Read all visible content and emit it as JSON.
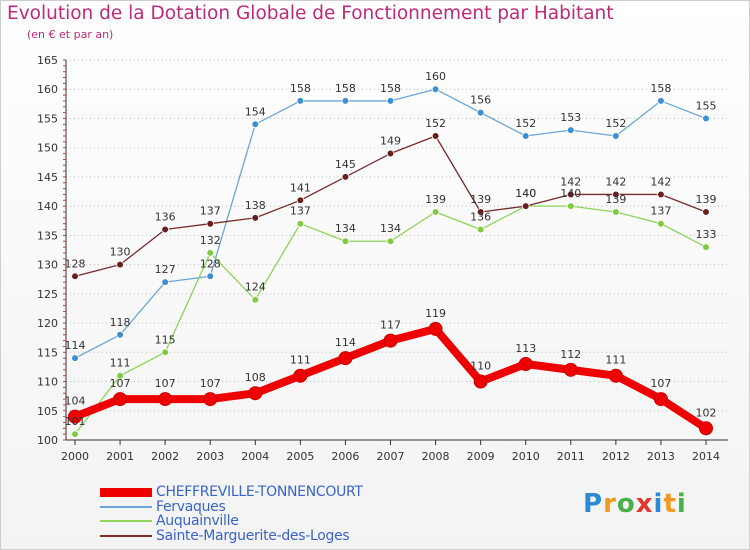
{
  "title": "Evolution de la Dotation Globale de Fonctionnement par Habitant",
  "subtitle": "(en € et par an)",
  "logo": {
    "letters": [
      "P",
      "r",
      "o",
      "x",
      "i",
      "t",
      "i"
    ],
    "colors": [
      "#2b8ad6",
      "#f39a1c",
      "#4ab04a",
      "#e23a2a",
      "#2b8ad6",
      "#f39a1c",
      "#4ab04a"
    ]
  },
  "chart_data": {
    "type": "line",
    "title": "Evolution de la Dotation Globale de Fonctionnement par Habitant",
    "subtitle": "(en € et par an)",
    "xlabel": "",
    "ylabel": "",
    "x": [
      "2000",
      "2001",
      "2002",
      "2003",
      "2004",
      "2005",
      "2006",
      "2007",
      "2008",
      "2009",
      "2010",
      "2011",
      "2012",
      "2013",
      "2014"
    ],
    "ylim": [
      100,
      165
    ],
    "yticks": [
      100,
      105,
      110,
      115,
      120,
      125,
      130,
      135,
      140,
      145,
      150,
      155,
      160,
      165
    ],
    "grid": "horizontal dotted",
    "legend_position": "bottom-left",
    "series": [
      {
        "name": "CHEFFREVILLE-TONNENCOURT",
        "color": "#ee0000",
        "values": [
          104,
          107,
          107,
          107,
          108,
          111,
          114,
          117,
          119,
          110,
          113,
          112,
          111,
          107,
          102
        ],
        "labels": [
          "104",
          "107",
          "107",
          "107",
          "108",
          "111",
          "114",
          "117",
          "119",
          "110",
          "113",
          "112",
          "111",
          "107",
          "102"
        ]
      },
      {
        "name": "Fervaques",
        "color": "#6ca6d8",
        "values": [
          114,
          118,
          127,
          128,
          154,
          158,
          158,
          158,
          160,
          156,
          152,
          153,
          152,
          158,
          155
        ],
        "labels": [
          "114",
          "118",
          "127",
          "128",
          "154",
          "158",
          "158",
          "158",
          "160",
          "156",
          "152",
          "153",
          "152",
          "158",
          "155"
        ]
      },
      {
        "name": "Auquainville",
        "color": "#8fd45a",
        "values": [
          101,
          111,
          115,
          132,
          124,
          137,
          134,
          134,
          139,
          136,
          140,
          140,
          139,
          137,
          133
        ],
        "labels": [
          "101",
          "111",
          "115",
          "132",
          "124",
          "137",
          "134",
          "134",
          "139",
          "136",
          "140",
          "140",
          "139",
          "137",
          "133"
        ]
      },
      {
        "name": "Sainte-Marguerite-des-Loges",
        "color": "#7a2a2a",
        "values": [
          128,
          130,
          136,
          137,
          138,
          141,
          145,
          149,
          152,
          139,
          140,
          142,
          142,
          142,
          139
        ],
        "labels": [
          "128",
          "130",
          "136",
          "137",
          "138",
          "141",
          "145",
          "149",
          "152",
          "139",
          "140",
          "142",
          "142",
          "142",
          "139"
        ]
      }
    ]
  }
}
